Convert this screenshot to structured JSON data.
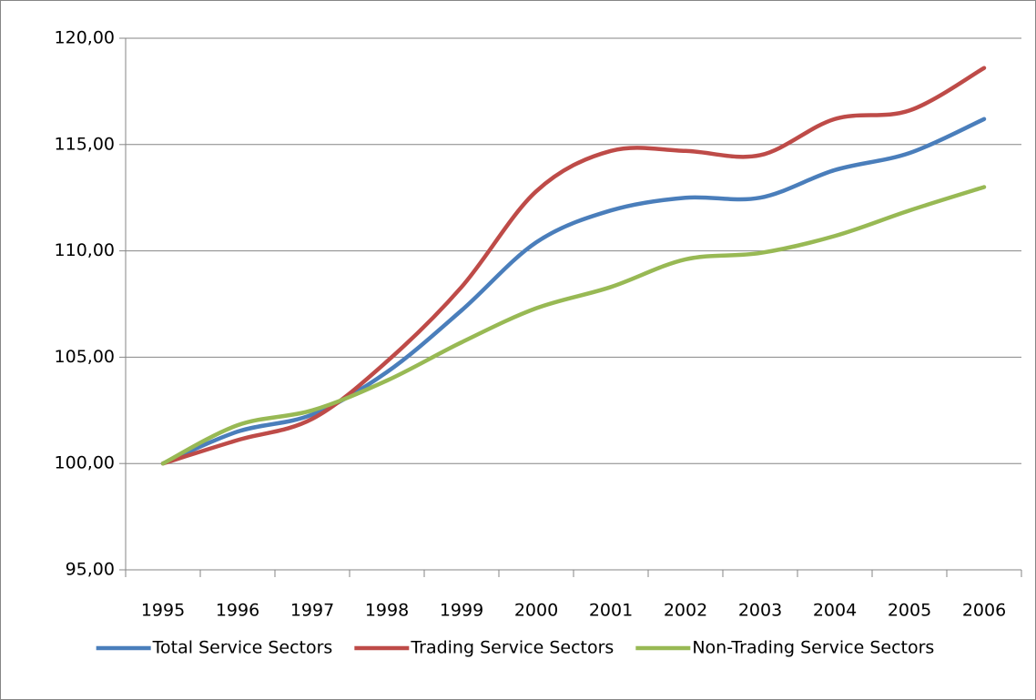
{
  "chart_data": {
    "type": "line",
    "categories": [
      "1995",
      "1996",
      "1997",
      "1998",
      "1999",
      "2000",
      "2001",
      "2002",
      "2003",
      "2004",
      "2005",
      "2006"
    ],
    "series": [
      {
        "name": "Total Service Sectors",
        "color": "#4a7ebb",
        "values": [
          100,
          101.5,
          102.3,
          104.3,
          107.2,
          110.4,
          111.9,
          112.5,
          112.5,
          113.8,
          114.6,
          116.2
        ]
      },
      {
        "name": "Trading Service Sectors",
        "color": "#be4b48",
        "values": [
          100,
          101.1,
          102.1,
          104.8,
          108.3,
          112.8,
          114.7,
          114.7,
          114.5,
          116.2,
          116.6,
          118.6
        ]
      },
      {
        "name": "Non-Trading Service Sectors",
        "color": "#98b954",
        "values": [
          100,
          101.8,
          102.5,
          103.9,
          105.7,
          107.3,
          108.3,
          109.6,
          109.9,
          110.7,
          111.9,
          113.0
        ]
      }
    ],
    "ylim": [
      95,
      120
    ],
    "yticks": [
      {
        "value": 95,
        "label": "95,00"
      },
      {
        "value": 100,
        "label": "100,00"
      },
      {
        "value": 105,
        "label": "105,00"
      },
      {
        "value": 110,
        "label": "110,00"
      },
      {
        "value": 115,
        "label": "115,00"
      },
      {
        "value": 120,
        "label": "120,00"
      }
    ],
    "grid": true,
    "smooth": true,
    "legend": "bottom"
  }
}
